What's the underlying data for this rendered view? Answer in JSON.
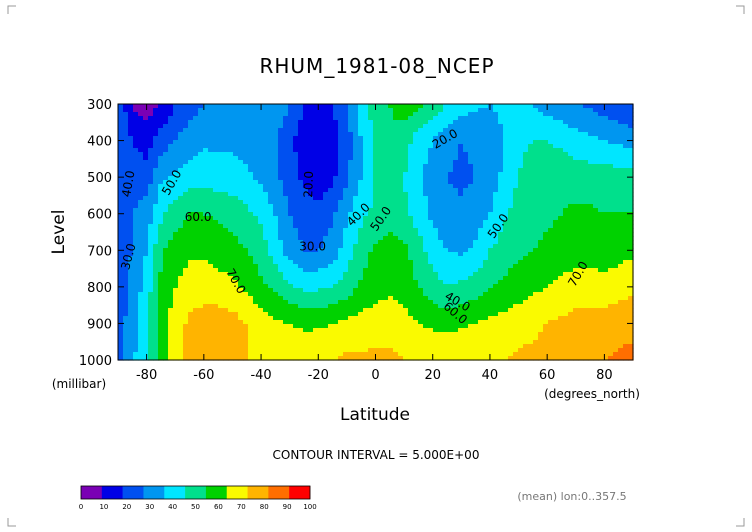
{
  "chart_data": {
    "type": "heatmap",
    "title": "RHUM_1981-08_NCEP",
    "xlabel": "Latitude",
    "ylabel": "Level",
    "x_unit": "(degrees_north)",
    "y_unit": "(millibar)",
    "x_ticks": [
      "-80",
      "-60",
      "-40",
      "-20",
      "0",
      "20",
      "40",
      "60",
      "80"
    ],
    "y_ticks": [
      "300",
      "400",
      "500",
      "600",
      "700",
      "800",
      "900",
      "1000"
    ],
    "xlim": [
      -90,
      90
    ],
    "ylim": [
      1000,
      300
    ],
    "x": [
      -90,
      -85,
      -80,
      -75,
      -70,
      -65,
      -60,
      -55,
      -50,
      -45,
      -40,
      -35,
      -30,
      -25,
      -20,
      -15,
      -10,
      -5,
      0,
      5,
      10,
      15,
      20,
      25,
      30,
      35,
      40,
      45,
      50,
      55,
      60,
      65,
      70,
      75,
      80,
      85,
      90
    ],
    "y": [
      300,
      400,
      500,
      600,
      700,
      800,
      900,
      1000
    ],
    "z": [
      [
        30,
        8,
        5,
        10,
        20,
        25,
        30,
        32,
        34,
        34,
        36,
        38,
        30,
        20,
        18,
        20,
        30,
        45,
        55,
        60,
        65,
        62,
        58,
        50,
        45,
        42,
        40,
        42,
        45,
        40,
        35,
        32,
        30,
        28,
        25,
        22,
        20
      ],
      [
        30,
        20,
        15,
        25,
        30,
        35,
        38,
        38,
        38,
        36,
        35,
        30,
        22,
        15,
        12,
        15,
        25,
        40,
        52,
        58,
        55,
        45,
        40,
        33,
        30,
        32,
        35,
        40,
        48,
        50,
        50,
        48,
        45,
        42,
        40,
        38,
        36
      ],
      [
        30,
        25,
        25,
        38,
        42,
        45,
        46,
        45,
        44,
        42,
        38,
        32,
        25,
        18,
        15,
        18,
        28,
        40,
        50,
        52,
        50,
        42,
        35,
        30,
        28,
        30,
        35,
        42,
        50,
        55,
        56,
        56,
        55,
        55,
        55,
        55,
        55
      ],
      [
        30,
        30,
        35,
        48,
        55,
        60,
        60,
        58,
        56,
        52,
        48,
        40,
        30,
        25,
        22,
        28,
        38,
        48,
        52,
        55,
        52,
        45,
        38,
        33,
        32,
        35,
        40,
        48,
        55,
        57,
        58,
        60,
        62,
        62,
        60,
        60,
        60
      ],
      [
        28,
        30,
        40,
        58,
        65,
        68,
        68,
        66,
        64,
        60,
        55,
        45,
        35,
        30,
        30,
        35,
        45,
        55,
        62,
        65,
        62,
        55,
        45,
        40,
        38,
        42,
        50,
        55,
        58,
        60,
        62,
        65,
        66,
        66,
        65,
        66,
        68
      ],
      [
        25,
        32,
        45,
        62,
        70,
        75,
        75,
        74,
        72,
        68,
        62,
        58,
        52,
        48,
        48,
        50,
        55,
        62,
        65,
        68,
        65,
        60,
        55,
        50,
        52,
        55,
        60,
        62,
        65,
        68,
        70,
        72,
        74,
        74,
        74,
        76,
        78
      ],
      [
        25,
        35,
        48,
        65,
        75,
        82,
        85,
        86,
        84,
        80,
        75,
        72,
        70,
        68,
        68,
        70,
        72,
        74,
        76,
        76,
        74,
        70,
        68,
        66,
        68,
        70,
        72,
        74,
        76,
        78,
        80,
        82,
        84,
        84,
        84,
        86,
        88
      ],
      [
        25,
        38,
        50,
        65,
        76,
        82,
        85,
        85,
        84,
        80,
        78,
        78,
        78,
        78,
        80,
        80,
        82,
        82,
        82,
        82,
        80,
        80,
        80,
        80,
        80,
        80,
        80,
        80,
        82,
        82,
        84,
        86,
        88,
        88,
        90,
        92,
        92
      ]
    ],
    "contour_labels": [
      "40.0",
      "30.0",
      "50.0",
      "20.0",
      "60.0",
      "30.0",
      "40.0",
      "50.0",
      "20.0",
      "70.0",
      "40.0",
      "50.0",
      "60.0",
      "70.0"
    ],
    "colorbar": {
      "levels": [
        "0",
        "10",
        "20",
        "30",
        "40",
        "50",
        "60",
        "70",
        "80",
        "90",
        "100"
      ],
      "colors": [
        "#7a00b4",
        "#0000e6",
        "#0050f0",
        "#0096f0",
        "#00e6ff",
        "#00e08c",
        "#00d200",
        "#fafa00",
        "#ffb400",
        "#ff6e00",
        "#ff0000"
      ]
    },
    "grid": false
  },
  "annotations": {
    "contour_interval": "CONTOUR INTERVAL = 5.000E+00",
    "mean_note": "(mean) lon:0..357.5"
  }
}
